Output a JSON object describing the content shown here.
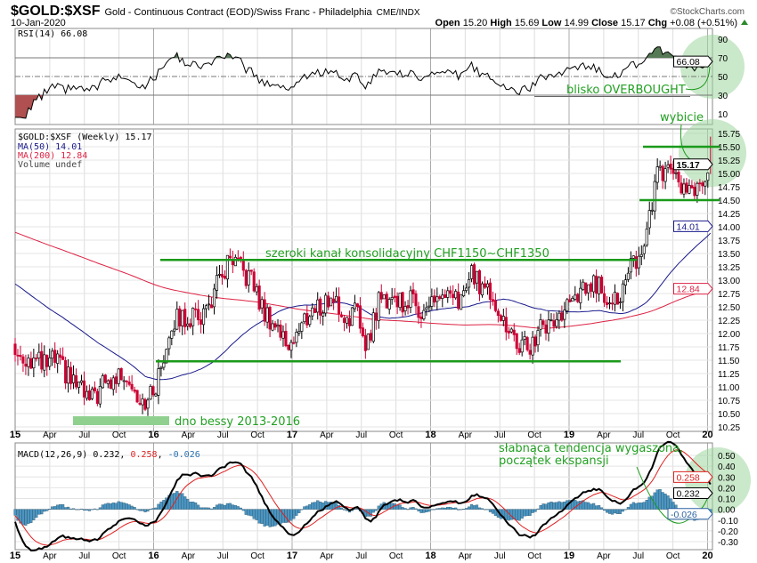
{
  "header": {
    "symbol": "$GOLD:$XSF",
    "description": "Gold - Continuous Contract (EOD)/Swiss Franc - Philadelphia",
    "exchange": "CME/INDX",
    "copyright": "©StockCharts.com",
    "date": "10-Jan-2020",
    "open_label": "Open",
    "open": "15.20",
    "high_label": "High",
    "high": "15.69",
    "low_label": "Low",
    "low": "14.99",
    "close_label": "Close",
    "close": "15.17",
    "chg_label": "Chg",
    "chg": "+0.08 (+0.51%)"
  },
  "colors": {
    "up": "#000000",
    "down": "#cc0033",
    "ma50": "#1a1a8c",
    "ma200": "#dd2244",
    "annotation": "#22a022",
    "hist": "#4a96c4",
    "rsi_fill": "#557a55"
  },
  "chart_data": {
    "type": "candlestick",
    "timeframe": "weekly",
    "x_ticks": [
      "15",
      "Apr",
      "Jul",
      "Oct",
      "16",
      "Apr",
      "Jul",
      "Oct",
      "17",
      "Apr",
      "Jul",
      "Oct",
      "18",
      "Apr",
      "Jul",
      "Oct",
      "19",
      "Apr",
      "Jul",
      "Oct",
      "20"
    ],
    "price": {
      "legend": "$GOLD:$XSF (Weekly) 15.17",
      "ma50_legend": "MA(50) 14.01",
      "ma200_legend": "MA(200) 12.84",
      "volume_legend": "Volume undef",
      "ylim": [
        10.25,
        15.75
      ],
      "y_ticks": [
        "15.75",
        "15.50",
        "15.25",
        "15.00",
        "14.75",
        "14.50",
        "14.25",
        "14.00",
        "13.75",
        "13.50",
        "13.25",
        "13.00",
        "12.75",
        "12.50",
        "12.25",
        "12.00",
        "11.75",
        "11.50",
        "11.25",
        "11.00",
        "10.75",
        "10.50",
        "10.25"
      ],
      "monthly_close": [
        11.6,
        11.5,
        11.4,
        11.5,
        11.2,
        11.0,
        10.7,
        11.0,
        11.1,
        11.3,
        10.9,
        10.7,
        11.2,
        12.2,
        12.3,
        12.3,
        12.4,
        12.9,
        13.3,
        13.2,
        13.0,
        12.4,
        12.2,
        11.8,
        12.0,
        12.4,
        12.5,
        12.7,
        12.3,
        12.4,
        11.8,
        12.6,
        12.7,
        12.6,
        12.6,
        12.4,
        12.7,
        12.6,
        12.6,
        13.1,
        12.9,
        12.7,
        12.1,
        11.8,
        11.7,
        12.1,
        12.2,
        12.4,
        12.6,
        12.9,
        12.9,
        12.7,
        12.7,
        13.3,
        13.6,
        14.9,
        15.0,
        14.8,
        14.6,
        14.7,
        15.17
      ],
      "last_close": 15.17,
      "ma50_last": 14.01,
      "ma200_last": 12.84,
      "last_close_label": "15.17",
      "ma50_label": "14.01",
      "ma200_label": "12.84",
      "channel_top": 13.38,
      "channel_bottom": 11.48,
      "resistance": 15.5,
      "support": 14.5
    },
    "rsi": {
      "legend": "RSI(14) 66.08",
      "value": 66.08,
      "value_label": "66.08",
      "ylim": [
        0,
        100
      ],
      "y_ticks": [
        "90",
        "70",
        "50",
        "30",
        "10"
      ],
      "levels": [
        70,
        50,
        30
      ]
    },
    "macd": {
      "legend_prefix": "MACD(12,26,9)",
      "macd": "0.232",
      "signal": "0.258",
      "hist": "-0.026",
      "macd_value": 0.232,
      "signal_value": 0.258,
      "hist_value": -0.026,
      "ylim": [
        -0.35,
        0.55
      ],
      "y_ticks": [
        "0.50",
        "0.40",
        "0.30",
        "0.20",
        "0.10",
        "0.00",
        "-0.10",
        "-0.20",
        "-0.30"
      ]
    }
  },
  "annotations": {
    "channel": "szeroki kanał konsolidacyjny CHF1150~CHF1350",
    "bottom": "dno  bessy 2013-2016",
    "breakout": "wybicie",
    "overbought": "blisko OVERBOUGHT",
    "macd_line1": "słabnąca tendencja wygaszona,",
    "macd_line2": "początek ekspansji"
  }
}
